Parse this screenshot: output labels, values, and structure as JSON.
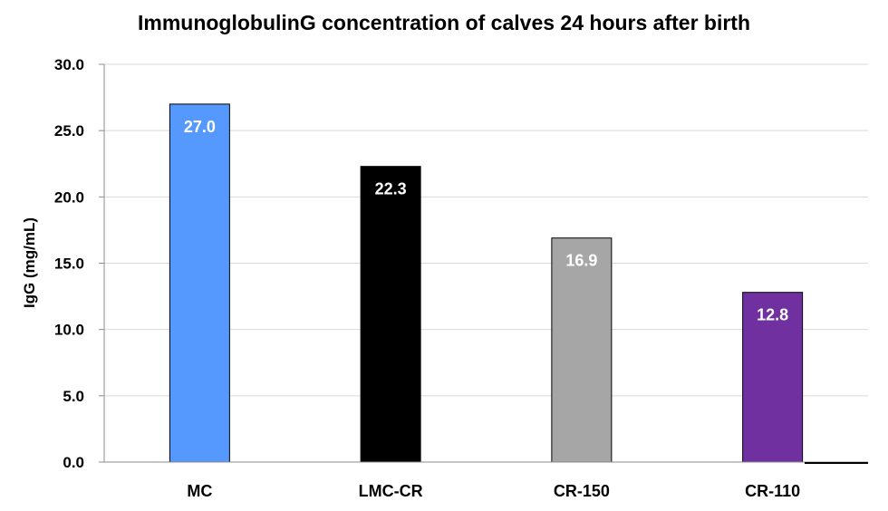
{
  "chart_data": {
    "type": "bar",
    "title": "ImmunoglobulinG concentration of calves 24 hours after birth",
    "xlabel": "",
    "ylabel": "IgG (mg/mL)",
    "categories": [
      "MC",
      "LMC-CR",
      "CR-150",
      "CR-110"
    ],
    "values": [
      27.0,
      22.3,
      16.9,
      12.8
    ],
    "data_labels": [
      "27.0",
      "22.3",
      "16.9",
      "12.8"
    ],
    "colors": [
      "#5599FF",
      "#000000",
      "#A6A6A6",
      "#7030A0"
    ],
    "ylim": [
      0,
      30
    ],
    "yticks": [
      "0.0",
      "5.0",
      "10.0",
      "15.0",
      "20.0",
      "25.0",
      "30.0"
    ],
    "grid": true,
    "legend": "none"
  }
}
